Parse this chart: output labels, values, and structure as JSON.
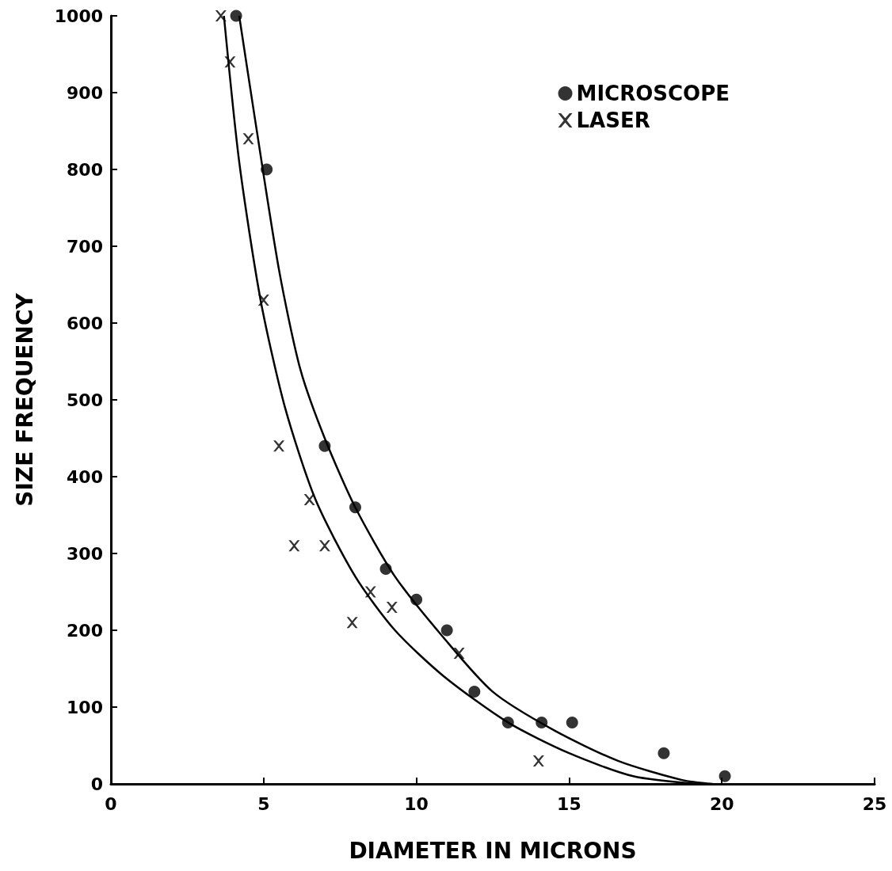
{
  "chart_data": {
    "type": "scatter",
    "xlabel": "DIAMETER IN MICRONS",
    "ylabel": "SIZE FREQUENCY",
    "xlim": [
      0,
      25
    ],
    "xticks": [
      0,
      5,
      10,
      15,
      20,
      25
    ],
    "ylim": [
      0,
      1000
    ],
    "yticks": [
      0,
      100,
      200,
      300,
      400,
      500,
      600,
      700,
      800,
      900,
      1000
    ],
    "grid": false,
    "legend": "top right",
    "series": [
      {
        "name": "MICROSCOPE",
        "marker": "circle",
        "color": "#000000",
        "x": [
          4.1,
          5.1,
          7.0,
          8.0,
          9.0,
          10.0,
          11.0,
          11.9,
          13.0,
          14.1,
          15.1,
          18.1,
          20.1
        ],
        "values": [
          1000,
          800,
          440,
          360,
          280,
          240,
          200,
          120,
          80,
          80,
          80,
          40,
          10
        ]
      },
      {
        "name": "LASER",
        "marker": "cross",
        "color": "#000000",
        "x": [
          3.6,
          3.9,
          4.5,
          5.0,
          5.5,
          6.0,
          6.5,
          7.0,
          7.9,
          8.5,
          9.2,
          11.4,
          14.0
        ],
        "values": [
          1000,
          940,
          840,
          630,
          440,
          310,
          370,
          310,
          210,
          250,
          230,
          170,
          30
        ]
      },
      {
        "type": "line",
        "marker": "none",
        "line_style": "solid",
        "color": "#000000",
        "x": [
          4.2,
          4.7,
          5.5,
          6.2,
          7.0,
          8.0,
          9.3,
          10.9,
          12.5,
          14.5,
          16.6,
          18.7,
          19.7
        ],
        "values": [
          1000,
          870,
          670,
          540,
          450,
          360,
          270,
          190,
          120,
          70,
          30,
          5,
          0
        ]
      },
      {
        "type": "line",
        "marker": "none",
        "line_style": "solid",
        "color": "#000000",
        "x": [
          3.7,
          4.2,
          4.9,
          5.7,
          6.7,
          8.0,
          9.3,
          10.9,
          13.0,
          15.0,
          17.1,
          19.2
        ],
        "values": [
          1000,
          810,
          630,
          490,
          370,
          270,
          200,
          140,
          80,
          40,
          10,
          0
        ]
      }
    ]
  }
}
